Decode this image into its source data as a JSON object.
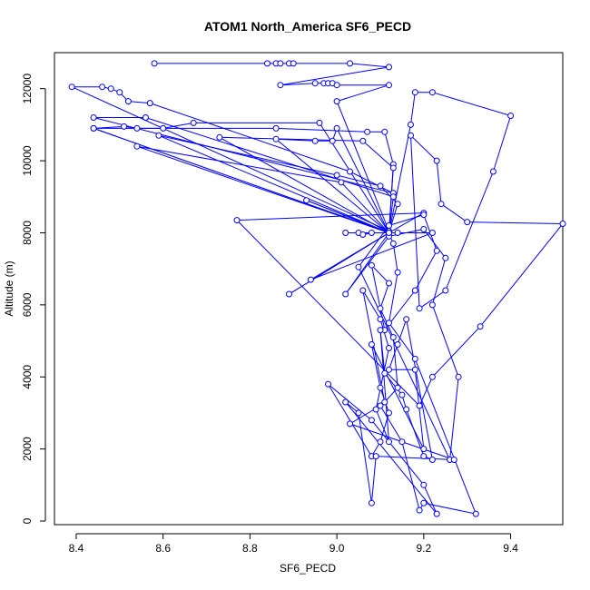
{
  "chart_data": {
    "type": "line",
    "title": "ATOM1 North_America SF6_PECD",
    "xlabel": "SF6_PECD",
    "ylabel": "Altitude (m)",
    "xlim": [
      8.35,
      9.52
    ],
    "ylim": [
      -100,
      13000
    ],
    "x_ticks": [
      8.4,
      8.6,
      8.8,
      9.0,
      9.2,
      9.4
    ],
    "x_tick_labels": [
      "8.4",
      "8.6",
      "8.8",
      "9.0",
      "9.2",
      "9.4"
    ],
    "y_ticks": [
      0,
      2000,
      4000,
      6000,
      8000,
      10000,
      12000
    ],
    "y_tick_labels": [
      "0",
      "2000",
      "4000",
      "6000",
      "8000",
      "10000",
      "12000"
    ],
    "grid": false,
    "legend": "none",
    "series": [
      {
        "marker": "open-circle",
        "color": "#0000ff",
        "points": [
          [
            8.58,
            12700
          ],
          [
            8.84,
            12700
          ],
          [
            8.86,
            12700
          ],
          [
            8.87,
            12700
          ],
          [
            8.89,
            12700
          ],
          [
            8.9,
            12700
          ],
          [
            9.03,
            12700
          ],
          [
            9.12,
            12600
          ],
          [
            8.87,
            12100
          ],
          [
            8.95,
            12150
          ],
          [
            8.97,
            12150
          ],
          [
            8.98,
            12150
          ],
          [
            8.99,
            12150
          ],
          [
            9.0,
            12100
          ],
          [
            9.12,
            12100
          ],
          [
            9.0,
            11650
          ],
          [
            9.12,
            8050
          ],
          [
            8.39,
            12050
          ],
          [
            8.46,
            12050
          ],
          [
            8.48,
            12000
          ],
          [
            8.5,
            11900
          ],
          [
            8.52,
            11650
          ],
          [
            8.57,
            11600
          ],
          [
            9.03,
            9700
          ],
          [
            9.13,
            9100
          ],
          [
            8.44,
            11200
          ],
          [
            8.56,
            11200
          ],
          [
            9.13,
            9000
          ],
          [
            9.12,
            8000
          ],
          [
            8.44,
            10900
          ],
          [
            8.51,
            10950
          ],
          [
            8.54,
            10900
          ],
          [
            8.6,
            10900
          ],
          [
            8.67,
            11050
          ],
          [
            8.96,
            11050
          ],
          [
            9.12,
            8000
          ],
          [
            8.44,
            10900
          ],
          [
            8.86,
            10900
          ],
          [
            9.07,
            10800
          ],
          [
            9.11,
            10800
          ],
          [
            9.13,
            9900
          ],
          [
            9.12,
            8000
          ],
          [
            8.86,
            10600
          ],
          [
            8.95,
            10550
          ],
          [
            8.99,
            10550
          ],
          [
            9.0,
            10900
          ],
          [
            9.12,
            8000
          ],
          [
            8.73,
            10650
          ],
          [
            9.06,
            10550
          ],
          [
            9.13,
            9800
          ],
          [
            9.12,
            8000
          ],
          [
            8.59,
            10700
          ],
          [
            9.0,
            9600
          ],
          [
            9.1,
            9300
          ],
          [
            9.14,
            8800
          ],
          [
            9.12,
            8000
          ],
          [
            8.54,
            10400
          ],
          [
            9.01,
            9400
          ],
          [
            9.12,
            8000
          ],
          [
            9.17,
            11000
          ],
          [
            9.18,
            11900
          ],
          [
            9.22,
            11900
          ],
          [
            9.4,
            11250
          ],
          [
            9.36,
            9700
          ],
          [
            9.25,
            6400
          ],
          [
            9.19,
            5900
          ],
          [
            9.17,
            10700
          ],
          [
            9.23,
            10000
          ],
          [
            9.24,
            8800
          ],
          [
            9.3,
            8300
          ],
          [
            9.52,
            8250
          ],
          [
            9.33,
            5400
          ],
          [
            9.22,
            4000
          ],
          [
            9.19,
            3200
          ],
          [
            8.77,
            8350
          ],
          [
            9.2,
            8550
          ],
          [
            9.12,
            8000
          ],
          [
            8.93,
            8900
          ],
          [
            9.12,
            8000
          ],
          [
            9.02,
            8000
          ],
          [
            9.05,
            8000
          ],
          [
            9.06,
            7950
          ],
          [
            9.08,
            8000
          ],
          [
            9.12,
            8000
          ],
          [
            9.14,
            8000
          ],
          [
            9.22,
            8000
          ],
          [
            8.94,
            6700
          ],
          [
            9.12,
            8000
          ],
          [
            8.89,
            6300
          ],
          [
            9.12,
            8000
          ],
          [
            9.02,
            6300
          ],
          [
            9.12,
            7900
          ],
          [
            9.2,
            8100
          ],
          [
            9.25,
            7300
          ],
          [
            9.22,
            6000
          ],
          [
            9.28,
            4000
          ],
          [
            9.26,
            1700
          ],
          [
            9.05,
            7050
          ],
          [
            9.12,
            8200
          ],
          [
            9.2,
            8500
          ],
          [
            9.23,
            7500
          ],
          [
            9.18,
            6400
          ],
          [
            9.11,
            5300
          ],
          [
            9.08,
            7100
          ],
          [
            9.12,
            6600
          ],
          [
            9.1,
            5900
          ],
          [
            9.13,
            5100
          ],
          [
            9.14,
            3700
          ],
          [
            9.11,
            3300
          ],
          [
            9.06,
            6400
          ],
          [
            9.1,
            5600
          ],
          [
            9.12,
            4800
          ],
          [
            9.09,
            3100
          ],
          [
            9.12,
            2200
          ],
          [
            9.1,
            5300
          ],
          [
            9.11,
            4100
          ],
          [
            9.15,
            3500
          ],
          [
            9.16,
            3100
          ],
          [
            9.2,
            1800
          ],
          [
            9.22,
            1700
          ],
          [
            9.16,
            5600
          ],
          [
            9.14,
            4900
          ],
          [
            9.12,
            4200
          ],
          [
            9.18,
            4200
          ],
          [
            9.2,
            2000
          ],
          [
            9.08,
            4900
          ],
          [
            9.1,
            3700
          ],
          [
            9.12,
            3000
          ],
          [
            9.1,
            2200
          ],
          [
            9.08,
            1800
          ],
          [
            8.98,
            3800
          ],
          [
            9.08,
            2800
          ],
          [
            9.2,
            1000
          ],
          [
            9.23,
            200
          ],
          [
            9.02,
            3300
          ],
          [
            9.05,
            3000
          ],
          [
            9.08,
            500
          ],
          [
            9.09,
            1800
          ],
          [
            9.27,
            1700
          ],
          [
            9.03,
            2700
          ],
          [
            9.1,
            3200
          ],
          [
            9.15,
            2200
          ],
          [
            9.19,
            300
          ],
          [
            9.2,
            500
          ],
          [
            9.32,
            200
          ],
          [
            9.18,
            4500
          ],
          [
            9.12,
            5500
          ],
          [
            9.14,
            6900
          ],
          [
            9.13,
            7700
          ],
          [
            9.12,
            8000
          ]
        ]
      }
    ]
  }
}
